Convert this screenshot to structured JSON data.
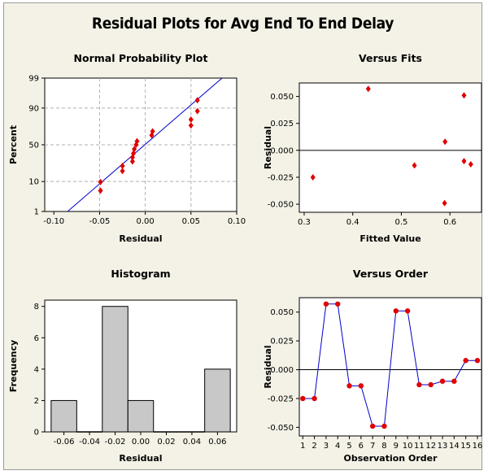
{
  "title": "Residual Plots for Avg End To End Delay",
  "colors": {
    "background": "#f4f2e6",
    "point": "#e00000",
    "line": "#0000cc",
    "bar": "#c8c8c8",
    "reference": "#888888"
  },
  "chart_data": [
    {
      "id": "normal-probability-plot",
      "type": "scatter",
      "title": "Normal Probability Plot",
      "xlabel": "Residual",
      "ylabel": "Percent",
      "xlim": [
        -0.11,
        0.1
      ],
      "x_ticks": [
        "-0.10",
        "-0.05",
        "0.00",
        "0.05",
        "0.10"
      ],
      "x_tick_values": [
        -0.1,
        -0.05,
        0.0,
        0.05,
        0.1
      ],
      "y_ticks": [
        "1",
        "10",
        "50",
        "90",
        "99"
      ],
      "y_tick_values": [
        1,
        10,
        50,
        90,
        99
      ],
      "grid": "dashed",
      "fit_line": {
        "x": [
          -0.085,
          0.084
        ],
        "y": [
          1,
          99
        ]
      },
      "points": [
        {
          "x": -0.049,
          "y": 5.5
        },
        {
          "x": -0.049,
          "y": 9.7
        },
        {
          "x": -0.025,
          "y": 18
        },
        {
          "x": -0.025,
          "y": 23
        },
        {
          "x": -0.014,
          "y": 28
        },
        {
          "x": -0.014,
          "y": 33
        },
        {
          "x": -0.013,
          "y": 38
        },
        {
          "x": -0.012,
          "y": 44
        },
        {
          "x": -0.01,
          "y": 50
        },
        {
          "x": -0.009,
          "y": 55
        },
        {
          "x": 0.007,
          "y": 63
        },
        {
          "x": 0.008,
          "y": 68
        },
        {
          "x": 0.05,
          "y": 75
        },
        {
          "x": 0.05,
          "y": 81
        },
        {
          "x": 0.057,
          "y": 88
        },
        {
          "x": 0.057,
          "y": 94
        }
      ]
    },
    {
      "id": "versus-fits",
      "type": "scatter",
      "title": "Versus Fits",
      "xlabel": "Fitted Value",
      "ylabel": "Residual",
      "xlim": [
        0.29,
        0.665
      ],
      "ylim": [
        -0.0575,
        0.0625
      ],
      "x_ticks": [
        "0.3",
        "0.4",
        "0.5",
        "0.6"
      ],
      "x_tick_values": [
        0.3,
        0.4,
        0.5,
        0.6
      ],
      "y_ticks": [
        "-0.050",
        "-0.025",
        "0.000",
        "0.025",
        "0.050"
      ],
      "y_tick_values": [
        -0.05,
        -0.025,
        0.0,
        0.025,
        0.05
      ],
      "reference_line_y": 0,
      "points": [
        {
          "x": 0.318,
          "y": -0.025
        },
        {
          "x": 0.432,
          "y": 0.057
        },
        {
          "x": 0.527,
          "y": -0.014
        },
        {
          "x": 0.59,
          "y": 0.008
        },
        {
          "x": 0.589,
          "y": -0.049
        },
        {
          "x": 0.629,
          "y": 0.051
        },
        {
          "x": 0.629,
          "y": -0.01
        },
        {
          "x": 0.643,
          "y": -0.013
        }
      ]
    },
    {
      "id": "histogram",
      "type": "bar",
      "title": "Histogram",
      "xlabel": "Residual",
      "ylabel": "Frequency",
      "xlim": [
        -0.075,
        0.075
      ],
      "ylim": [
        0,
        8.4
      ],
      "x_ticks": [
        "-0.06",
        "-0.04",
        "-0.02",
        "0.00",
        "0.02",
        "0.04",
        "0.06"
      ],
      "x_tick_values": [
        -0.06,
        -0.04,
        -0.02,
        0.0,
        0.02,
        0.04,
        0.06
      ],
      "y_ticks": [
        "0",
        "2",
        "4",
        "6",
        "8"
      ],
      "y_tick_values": [
        0,
        2,
        4,
        6,
        8
      ],
      "bin_centers": [
        -0.06,
        -0.04,
        -0.02,
        0.0,
        0.02,
        0.04,
        0.06
      ],
      "bin_width": 0.02,
      "values": [
        2,
        0,
        8,
        2,
        0,
        0,
        4
      ]
    },
    {
      "id": "versus-order",
      "type": "line",
      "title": "Versus Order",
      "xlabel": "Observation Order",
      "ylabel": "Residual",
      "xlim": [
        0.7,
        16.35
      ],
      "ylim": [
        -0.0575,
        0.0625
      ],
      "x_ticks": [
        "1",
        "2",
        "3",
        "4",
        "5",
        "6",
        "7",
        "8",
        "9",
        "10",
        "11",
        "12",
        "13",
        "14",
        "15",
        "16"
      ],
      "x_tick_values": [
        1,
        2,
        3,
        4,
        5,
        6,
        7,
        8,
        9,
        10,
        11,
        12,
        13,
        14,
        15,
        16
      ],
      "y_ticks": [
        "-0.050",
        "-0.025",
        "0.000",
        "0.025",
        "0.050"
      ],
      "y_tick_values": [
        -0.05,
        -0.025,
        0.0,
        0.025,
        0.05
      ],
      "reference_line_y": 0,
      "x": [
        1,
        2,
        3,
        4,
        5,
        6,
        7,
        8,
        9,
        10,
        11,
        12,
        13,
        14,
        15,
        16
      ],
      "y": [
        -0.025,
        -0.025,
        0.057,
        0.057,
        -0.014,
        -0.014,
        -0.049,
        -0.049,
        0.051,
        0.051,
        -0.013,
        -0.013,
        -0.01,
        -0.01,
        0.008,
        0.008
      ]
    }
  ]
}
